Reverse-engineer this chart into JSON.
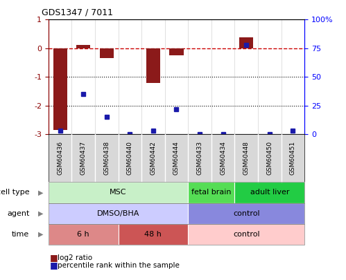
{
  "title": "GDS1347 / 7011",
  "samples": [
    "GSM60436",
    "GSM60437",
    "GSM60438",
    "GSM60440",
    "GSM60442",
    "GSM60444",
    "GSM60433",
    "GSM60434",
    "GSM60448",
    "GSM60450",
    "GSM60451"
  ],
  "log2_ratio": [
    -2.85,
    0.12,
    -0.35,
    0.0,
    -1.2,
    -0.25,
    0.0,
    0.0,
    0.38,
    0.0,
    0.0
  ],
  "percentile": [
    3,
    35,
    15,
    0,
    3,
    22,
    0,
    0,
    78,
    0,
    3
  ],
  "ylim_left": [
    -3,
    1
  ],
  "ylim_right": [
    0,
    100
  ],
  "right_ticks": [
    0,
    25,
    50,
    75,
    100
  ],
  "right_tick_labels": [
    "0",
    "25",
    "50",
    "75",
    "100%"
  ],
  "left_ticks": [
    -3,
    -2,
    -1,
    0,
    1
  ],
  "dotted_lines": [
    -1,
    -2
  ],
  "bar_color": "#8B1A1A",
  "dot_color": "#1a1aaa",
  "dashed_color": "#CC0000",
  "cell_type_groups": [
    {
      "label": "MSC",
      "start": 0,
      "end": 5,
      "color": "#c8f0c8"
    },
    {
      "label": "fetal brain",
      "start": 6,
      "end": 7,
      "color": "#55dd55"
    },
    {
      "label": "adult liver",
      "start": 8,
      "end": 10,
      "color": "#22cc44"
    }
  ],
  "agent_groups": [
    {
      "label": "DMSO/BHA",
      "start": 0,
      "end": 5,
      "color": "#ccccff"
    },
    {
      "label": "control",
      "start": 6,
      "end": 10,
      "color": "#8888dd"
    }
  ],
  "time_groups": [
    {
      "label": "6 h",
      "start": 0,
      "end": 2,
      "color": "#dd8888"
    },
    {
      "label": "48 h",
      "start": 3,
      "end": 5,
      "color": "#cc5555"
    },
    {
      "label": "control",
      "start": 6,
      "end": 10,
      "color": "#ffcccc"
    }
  ],
  "legend_items": [
    {
      "color": "#8B1A1A",
      "label": "log2 ratio"
    },
    {
      "color": "#1a1aaa",
      "label": "percentile rank within the sample"
    }
  ]
}
